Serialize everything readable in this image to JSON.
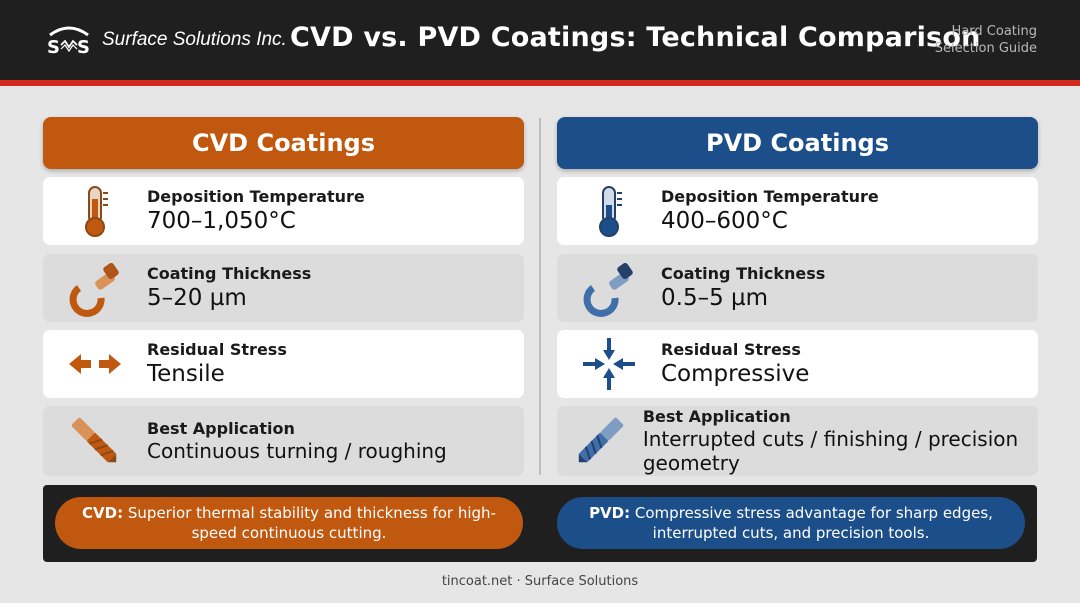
{
  "header": {
    "logo_text": "Surface Solutions Inc.",
    "logo_icon": "ss-logo-icon",
    "title": "CVD vs. PVD Coatings: Technical Comparison",
    "guide_line1": "Hard Coating",
    "guide_line2": "Selection Guide"
  },
  "colors": {
    "cvd": "#c0580f",
    "pvd": "#1c4e8a",
    "header_bg": "#1f1f1f",
    "accent_stripe": "#d42a1e"
  },
  "cvd": {
    "title": "CVD Coatings",
    "rows": [
      {
        "icon": "thermometer-icon",
        "label": "Deposition Temperature",
        "value": "700–1,050°C"
      },
      {
        "icon": "micrometer-icon",
        "label": "Coating Thickness",
        "value": "5–20 µm"
      },
      {
        "icon": "tensile-arrows-icon",
        "label": "Residual Stress",
        "value": "Tensile"
      },
      {
        "icon": "drill-bit-icon",
        "label": "Best Application",
        "value": "Continuous turning / roughing"
      }
    ]
  },
  "pvd": {
    "title": "PVD Coatings",
    "rows": [
      {
        "icon": "thermometer-icon",
        "label": "Deposition Temperature",
        "value": "400–600°C"
      },
      {
        "icon": "micrometer-icon",
        "label": "Coating Thickness",
        "value": "0.5–5 µm"
      },
      {
        "icon": "compressive-arrows-icon",
        "label": "Residual Stress",
        "value": "Compressive"
      },
      {
        "icon": "drill-bit-icon",
        "label": "Best Application",
        "value": "Interrupted cuts / finishing / precision geometry"
      }
    ]
  },
  "summary": {
    "cvd_prefix": "CVD:",
    "cvd_text": "Superior thermal stability and thickness for high-speed continuous cutting.",
    "pvd_prefix": "PVD:",
    "pvd_text": "Compressive stress advantage for sharp edges, interrupted cuts, and precision tools."
  },
  "footer": "tincoat.net · Surface Solutions"
}
